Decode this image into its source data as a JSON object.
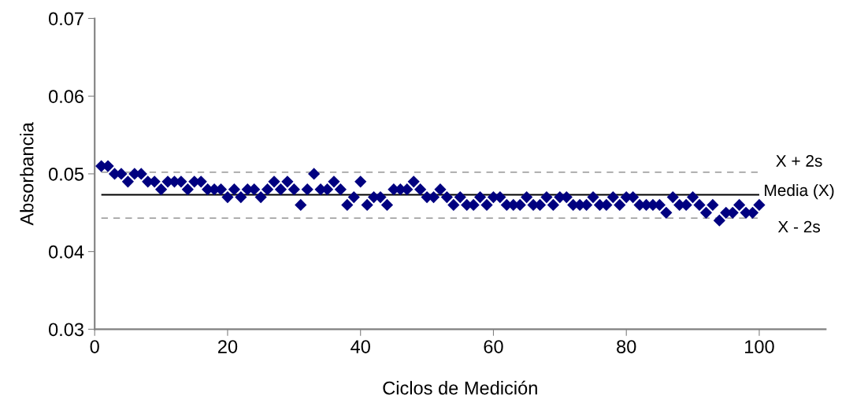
{
  "chart_data": {
    "type": "scatter",
    "xlabel": "Ciclos de Medición",
    "ylabel": "Absorbancia",
    "x": [
      1,
      2,
      3,
      4,
      5,
      6,
      7,
      8,
      9,
      10,
      11,
      12,
      13,
      14,
      15,
      16,
      17,
      18,
      19,
      20,
      21,
      22,
      23,
      24,
      25,
      26,
      27,
      28,
      29,
      30,
      31,
      32,
      33,
      34,
      35,
      36,
      37,
      38,
      39,
      40,
      41,
      42,
      43,
      44,
      45,
      46,
      47,
      48,
      49,
      50,
      51,
      52,
      53,
      54,
      55,
      56,
      57,
      58,
      59,
      60,
      61,
      62,
      63,
      64,
      65,
      66,
      67,
      68,
      69,
      70,
      71,
      72,
      73,
      74,
      75,
      76,
      77,
      78,
      79,
      80,
      81,
      82,
      83,
      84,
      85,
      86,
      87,
      88,
      89,
      90,
      91,
      92,
      93,
      94,
      95,
      96,
      97,
      98,
      99,
      100
    ],
    "series": [
      {
        "color": "#000080",
        "values": [
          0.051,
          0.051,
          0.05,
          0.05,
          0.049,
          0.05,
          0.05,
          0.049,
          0.049,
          0.048,
          0.049,
          0.049,
          0.049,
          0.048,
          0.049,
          0.049,
          0.048,
          0.048,
          0.048,
          0.047,
          0.048,
          0.047,
          0.048,
          0.048,
          0.047,
          0.048,
          0.049,
          0.048,
          0.049,
          0.048,
          0.046,
          0.048,
          0.05,
          0.048,
          0.048,
          0.049,
          0.048,
          0.046,
          0.047,
          0.049,
          0.046,
          0.047,
          0.047,
          0.046,
          0.048,
          0.048,
          0.048,
          0.049,
          0.048,
          0.047,
          0.047,
          0.048,
          0.047,
          0.046,
          0.047,
          0.046,
          0.046,
          0.047,
          0.046,
          0.047,
          0.047,
          0.046,
          0.046,
          0.046,
          0.047,
          0.046,
          0.046,
          0.047,
          0.046,
          0.047,
          0.047,
          0.046,
          0.046,
          0.046,
          0.047,
          0.046,
          0.046,
          0.047,
          0.046,
          0.047,
          0.047,
          0.046,
          0.046,
          0.046,
          0.046,
          0.045,
          0.047,
          0.046,
          0.046,
          0.047,
          0.046,
          0.045,
          0.046,
          0.044,
          0.045,
          0.045,
          0.046,
          0.045,
          0.045,
          0.046
        ]
      }
    ],
    "marker": "diamond",
    "xlim": [
      0,
      110
    ],
    "xticks": [
      0,
      20,
      40,
      60,
      80,
      100
    ],
    "ylim": [
      0.03,
      0.07
    ],
    "yticks": [
      {
        "value": 0.03,
        "label": "0.03"
      },
      {
        "value": 0.04,
        "label": "0.04"
      },
      {
        "value": 0.05,
        "label": "0.05"
      },
      {
        "value": 0.06,
        "label": "0.06"
      },
      {
        "value": 0.07,
        "label": "0.07"
      }
    ],
    "ref_lines": [
      {
        "axis": "y",
        "value": 0.0502,
        "label": "X + 2s",
        "color": "#808080",
        "line_style": "dashed"
      },
      {
        "axis": "y",
        "value": 0.0473,
        "label": "Media (X)",
        "color": "#000000",
        "line_style": "solid"
      },
      {
        "axis": "y",
        "value": 0.0443,
        "label": "X - 2s",
        "color": "#808080",
        "line_style": "dashed"
      }
    ],
    "grid": false,
    "legend": false
  }
}
